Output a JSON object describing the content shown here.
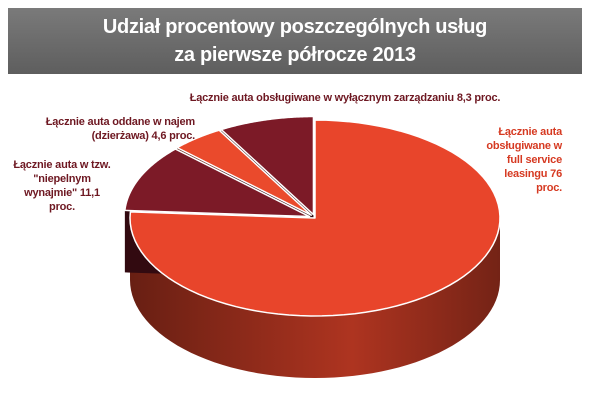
{
  "chart_data": {
    "type": "pie3d",
    "title": [
      "Udział procentowy poszczególnych usług",
      "za pierwsze półrocze 2013"
    ],
    "categories": [
      "Łącznie auta obsługiwane w full service leasingu",
      "Łącznie auta w tzw. \"niepelnym wynajmie\"",
      "Łącznie auta oddane w najem (dzierżawa)",
      "Łącznie auta obsługiwane w wyłącznym zarządzaniu"
    ],
    "values": [
      76,
      11.1,
      4.6,
      8.3
    ],
    "value_labels": [
      "76 proc.",
      "11,1 proc.",
      "4,6 proc.",
      "8,3 proc."
    ],
    "colors": [
      "#e8452b",
      "#7c1a27",
      "#ea4a2c",
      "#7c1a27"
    ],
    "label_colors": [
      "#d63a22",
      "#6e1822",
      "#6e1822",
      "#6e1822"
    ]
  }
}
